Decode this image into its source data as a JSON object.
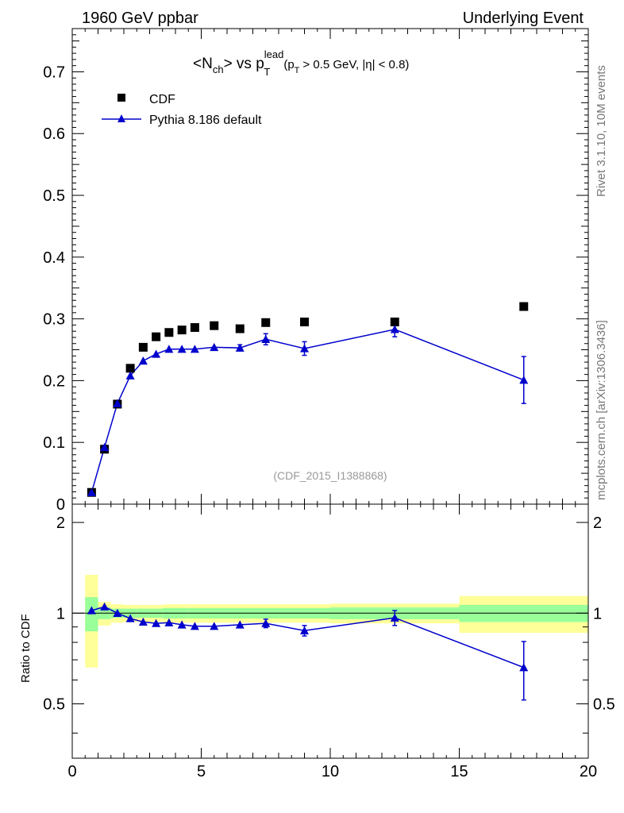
{
  "header": {
    "left": "1960 GeV ppbar",
    "right": "Underlying Event",
    "side_top": "Rivet 3.1.10,  10M events",
    "side_bottom": "mcplots.cern.ch [arXiv:1306.3436]"
  },
  "chart_data": {
    "type": "scatter",
    "title": {
      "lt": "<N",
      "ch": "ch",
      "mid": "> vs p",
      "lead": "lead",
      "T": "T",
      "paren_open": "(p",
      "T2": "T",
      "cond": "> 0.5 GeV, |η| < 0.8)"
    },
    "analysis_id": "(CDF_2015_I1388868)",
    "ylabel_ratio": "Ratio to CDF",
    "xlim": [
      0,
      20
    ],
    "ylim": [
      0,
      0.77
    ],
    "ratio_ylim": [
      0.33,
      2.3
    ],
    "x_ticks": [
      "0",
      "5",
      "10",
      "15",
      "20"
    ],
    "y_ticks": [
      "0",
      "0.1",
      "0.2",
      "0.3",
      "0.4",
      "0.5",
      "0.6",
      "0.7"
    ],
    "ratio_ticks": [
      "0.5",
      "1",
      "2"
    ],
    "legend": {
      "data_label": "CDF",
      "mc_label": "Pythia 8.186 default"
    },
    "colors": {
      "data": "#000000",
      "mc": "#0000cc",
      "band_inner": "#99ff99",
      "band_outer": "#ffff99"
    },
    "data": {
      "x": [
        0.75,
        1.25,
        1.75,
        2.25,
        2.75,
        3.25,
        3.75,
        4.25,
        4.75,
        5.5,
        6.5,
        7.5,
        9.0,
        12.5,
        17.5
      ],
      "y": [
        0.019,
        0.089,
        0.162,
        0.22,
        0.254,
        0.271,
        0.278,
        0.282,
        0.286,
        0.289,
        0.284,
        0.294,
        0.295,
        0.295,
        0.32
      ]
    },
    "mc": {
      "x": [
        0.75,
        1.25,
        1.75,
        2.25,
        2.75,
        3.25,
        3.75,
        4.25,
        4.75,
        5.5,
        6.5,
        7.5,
        9.0,
        12.5,
        17.5
      ],
      "y": [
        0.019,
        0.092,
        0.163,
        0.208,
        0.232,
        0.243,
        0.251,
        0.251,
        0.251,
        0.254,
        0.253,
        0.267,
        0.252,
        0.283,
        0.201
      ],
      "err": [
        0.001,
        0.001,
        0.002,
        0.002,
        0.002,
        0.003,
        0.003,
        0.003,
        0.003,
        0.004,
        0.005,
        0.009,
        0.011,
        0.012,
        0.038
      ]
    },
    "ratio": {
      "x": [
        0.75,
        1.25,
        1.75,
        2.25,
        2.75,
        3.25,
        3.75,
        4.25,
        4.75,
        5.5,
        6.5,
        7.5,
        9.0,
        12.5,
        17.5
      ],
      "y": [
        1.02,
        1.05,
        1.0,
        0.96,
        0.935,
        0.925,
        0.93,
        0.915,
        0.905,
        0.905,
        0.915,
        0.925,
        0.875,
        0.965,
        0.66
      ],
      "err": [
        0.0,
        0.0,
        0.0,
        0.0,
        0.0,
        0.0,
        0.0,
        0.0,
        0.0,
        0.0,
        0.0,
        0.03,
        0.035,
        0.055,
        0.145
      ]
    },
    "bands": {
      "edges": [
        0.5,
        1.0,
        1.5,
        2.0,
        2.5,
        3.0,
        3.5,
        4.0,
        4.5,
        5.0,
        6.0,
        7.0,
        8.0,
        10.0,
        15.0,
        20.0
      ],
      "inner": [
        0.13,
        0.045,
        0.035,
        0.035,
        0.035,
        0.035,
        0.04,
        0.04,
        0.04,
        0.04,
        0.04,
        0.04,
        0.04,
        0.045,
        0.065
      ],
      "outer": [
        0.34,
        0.09,
        0.07,
        0.065,
        0.065,
        0.065,
        0.07,
        0.07,
        0.07,
        0.07,
        0.07,
        0.07,
        0.07,
        0.075,
        0.14
      ]
    }
  }
}
